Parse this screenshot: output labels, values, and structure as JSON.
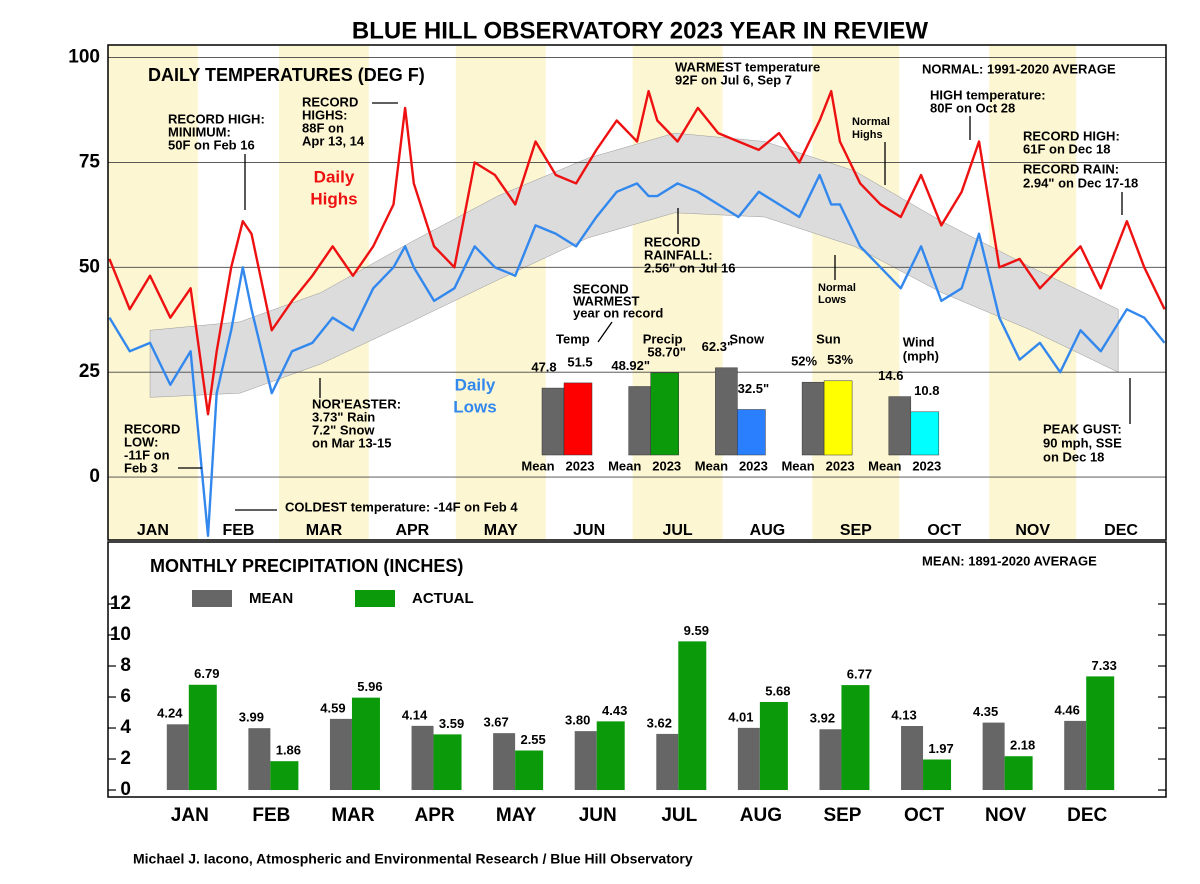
{
  "title": "BLUE HILL OBSERVATORY 2023 YEAR IN REVIEW",
  "footer": "Michael J. Iacono, Atmospheric and Environmental Research / Blue Hill Observatory",
  "chart_data": [
    {
      "type": "line",
      "title": "DAILY TEMPERATURES (DEG F)",
      "note": "NORMAL: 1991-2020 AVERAGE",
      "months": [
        "JAN",
        "FEB",
        "MAR",
        "APR",
        "MAY",
        "JUN",
        "JUL",
        "AUG",
        "SEP",
        "OCT",
        "NOV",
        "DEC"
      ],
      "band_color": "#fcf6d2",
      "grid": true,
      "xlim": [
        1,
        365
      ],
      "ylim": [
        -15,
        103
      ],
      "yticks": [
        0,
        25,
        50,
        75,
        100
      ],
      "x": [
        1,
        8,
        15,
        22,
        29,
        35,
        38,
        43,
        47,
        50,
        57,
        64,
        71,
        78,
        85,
        92,
        99,
        103,
        106,
        113,
        120,
        127,
        134,
        141,
        148,
        155,
        162,
        169,
        176,
        183,
        187,
        190,
        197,
        204,
        211,
        218,
        225,
        232,
        239,
        246,
        250,
        253,
        260,
        267,
        274,
        281,
        288,
        295,
        301,
        308,
        315,
        322,
        329,
        336,
        343,
        352,
        358,
        365
      ],
      "series": [
        {
          "name": "Daily Highs",
          "color": "#ee1111",
          "values": [
            52,
            40,
            48,
            38,
            45,
            15,
            30,
            50,
            61,
            58,
            35,
            42,
            48,
            55,
            48,
            55,
            65,
            88,
            70,
            55,
            50,
            75,
            72,
            65,
            80,
            72,
            70,
            78,
            85,
            80,
            92,
            85,
            80,
            88,
            82,
            80,
            78,
            82,
            75,
            85,
            92,
            80,
            70,
            65,
            62,
            72,
            60,
            68,
            80,
            50,
            52,
            45,
            50,
            55,
            45,
            61,
            50,
            40
          ]
        },
        {
          "name": "Daily Lows",
          "color": "#3388ee",
          "values": [
            38,
            30,
            32,
            22,
            30,
            -14,
            20,
            35,
            50,
            40,
            20,
            30,
            32,
            38,
            35,
            45,
            50,
            55,
            50,
            42,
            45,
            55,
            50,
            48,
            60,
            58,
            55,
            62,
            68,
            70,
            67,
            67,
            70,
            68,
            65,
            62,
            68,
            65,
            62,
            72,
            65,
            65,
            55,
            50,
            45,
            55,
            42,
            45,
            58,
            38,
            28,
            32,
            25,
            35,
            30,
            40,
            38,
            32
          ]
        }
      ],
      "normal": {
        "color": "#dcdcdc",
        "x": [
          15,
          46,
          74,
          105,
          135,
          166,
          196,
          227,
          258,
          288,
          319,
          349
        ],
        "high": [
          35,
          37,
          44,
          56,
          67,
          76,
          82,
          80,
          73,
          61,
          50,
          40
        ],
        "low": [
          19,
          20,
          27,
          37,
          47,
          57,
          63,
          62,
          55,
          44,
          35,
          25
        ]
      },
      "annotations": [
        {
          "lines": [
            "RECORD HIGH:",
            "MINIMUM:",
            "50F on Feb 16"
          ]
        },
        {
          "lines": [
            "RECORD",
            "HIGHS:",
            "88F on",
            "Apr 13, 14"
          ]
        },
        {
          "lines": [
            "WARMEST temperature",
            "92F on Jul 6, Sep 7"
          ]
        },
        {
          "lines": [
            "HIGH temperature:",
            "80F on Oct 28"
          ]
        },
        {
          "lines": [
            "RECORD HIGH:",
            "61F on Dec 18"
          ]
        },
        {
          "lines": [
            "RECORD RAIN:",
            "2.94\" on Dec 17-18"
          ]
        },
        {
          "lines": [
            "Normal",
            "Highs"
          ]
        },
        {
          "lines": [
            "Normal",
            "Lows"
          ]
        },
        {
          "lines": [
            "RECORD",
            "RAINFALL:",
            "2.56\" on Jul 16"
          ]
        },
        {
          "lines": [
            "SECOND",
            "WARMEST",
            "year on record"
          ]
        },
        {
          "lines": [
            "NOR'EASTER:",
            "3.73\" Rain",
            "7.2\" Snow",
            "on Mar 13-15"
          ]
        },
        {
          "lines": [
            "RECORD",
            "LOW:",
            "-11F on",
            "Feb 3"
          ]
        },
        {
          "lines": [
            "COLDEST temperature: -14F on Feb 4"
          ]
        },
        {
          "lines": [
            "PEAK GUST:",
            "90 mph, SSE",
            "on Dec 18"
          ]
        },
        {
          "lines": [
            "Daily",
            "Highs"
          ],
          "color": "#ee1111"
        },
        {
          "lines": [
            "Daily",
            "Lows"
          ],
          "color": "#3388ee"
        }
      ]
    },
    {
      "type": "bar",
      "series_names": [
        "Mean",
        "2023"
      ],
      "mean_color": "#666666",
      "groups": [
        {
          "label": [
            "Temp"
          ],
          "values": [
            47.8,
            51.5
          ],
          "color": "#ff0000",
          "ylim": [
            0,
            100
          ]
        },
        {
          "label": [
            "Precip"
          ],
          "values": [
            48.92,
            58.7
          ],
          "value_labels": [
            "48.92\"",
            "58.70\""
          ],
          "color": "#0a9a0a",
          "ylim": [
            0,
            100
          ]
        },
        {
          "label": [
            "Snow"
          ],
          "values": [
            62.3,
            32.5
          ],
          "value_labels": [
            "62.3\"",
            "32.5\""
          ],
          "color": "#2a7fff",
          "ylim": [
            0,
            100
          ]
        },
        {
          "label": [
            "Sun"
          ],
          "values": [
            52,
            53
          ],
          "value_labels": [
            "52%",
            "53%"
          ],
          "color": "#ffff00",
          "ylim": [
            0,
            100
          ]
        },
        {
          "label": [
            "Wind",
            "(mph)"
          ],
          "values": [
            14.6,
            10.8
          ],
          "color": "#00ffff",
          "ylim": [
            0,
            35
          ]
        }
      ]
    },
    {
      "type": "bar",
      "title": "MONTHLY PRECIPITATION (INCHES)",
      "note": "MEAN: 1891-2020 AVERAGE",
      "categories": [
        "JAN",
        "FEB",
        "MAR",
        "APR",
        "MAY",
        "JUN",
        "JUL",
        "AUG",
        "SEP",
        "OCT",
        "NOV",
        "DEC"
      ],
      "ylim": [
        -0.45,
        16
      ],
      "yticks": [
        0,
        2,
        4,
        6,
        8,
        10,
        12
      ],
      "series": [
        {
          "name": "MEAN",
          "color": "#666666",
          "values": [
            4.24,
            3.99,
            4.59,
            4.14,
            3.67,
            3.8,
            3.62,
            4.01,
            3.92,
            4.13,
            4.35,
            4.46
          ],
          "value_labels": [
            "4.24",
            "3.99",
            "4.59",
            "4.14",
            "3.67",
            "3.80",
            "3.62",
            "4.01",
            "3.92",
            "4.13",
            "4.35",
            "4.46"
          ]
        },
        {
          "name": "ACTUAL",
          "color": "#0a9a0a",
          "values": [
            6.79,
            1.86,
            5.96,
            3.59,
            2.55,
            4.43,
            9.59,
            5.68,
            6.77,
            1.97,
            2.18,
            7.33
          ],
          "value_labels": [
            "6.79",
            "1.86",
            "5.96",
            "3.59",
            "2.55",
            "4.43",
            "9.59",
            "5.68",
            "6.77",
            "1.97",
            "2.18",
            "7.33"
          ]
        }
      ]
    }
  ]
}
